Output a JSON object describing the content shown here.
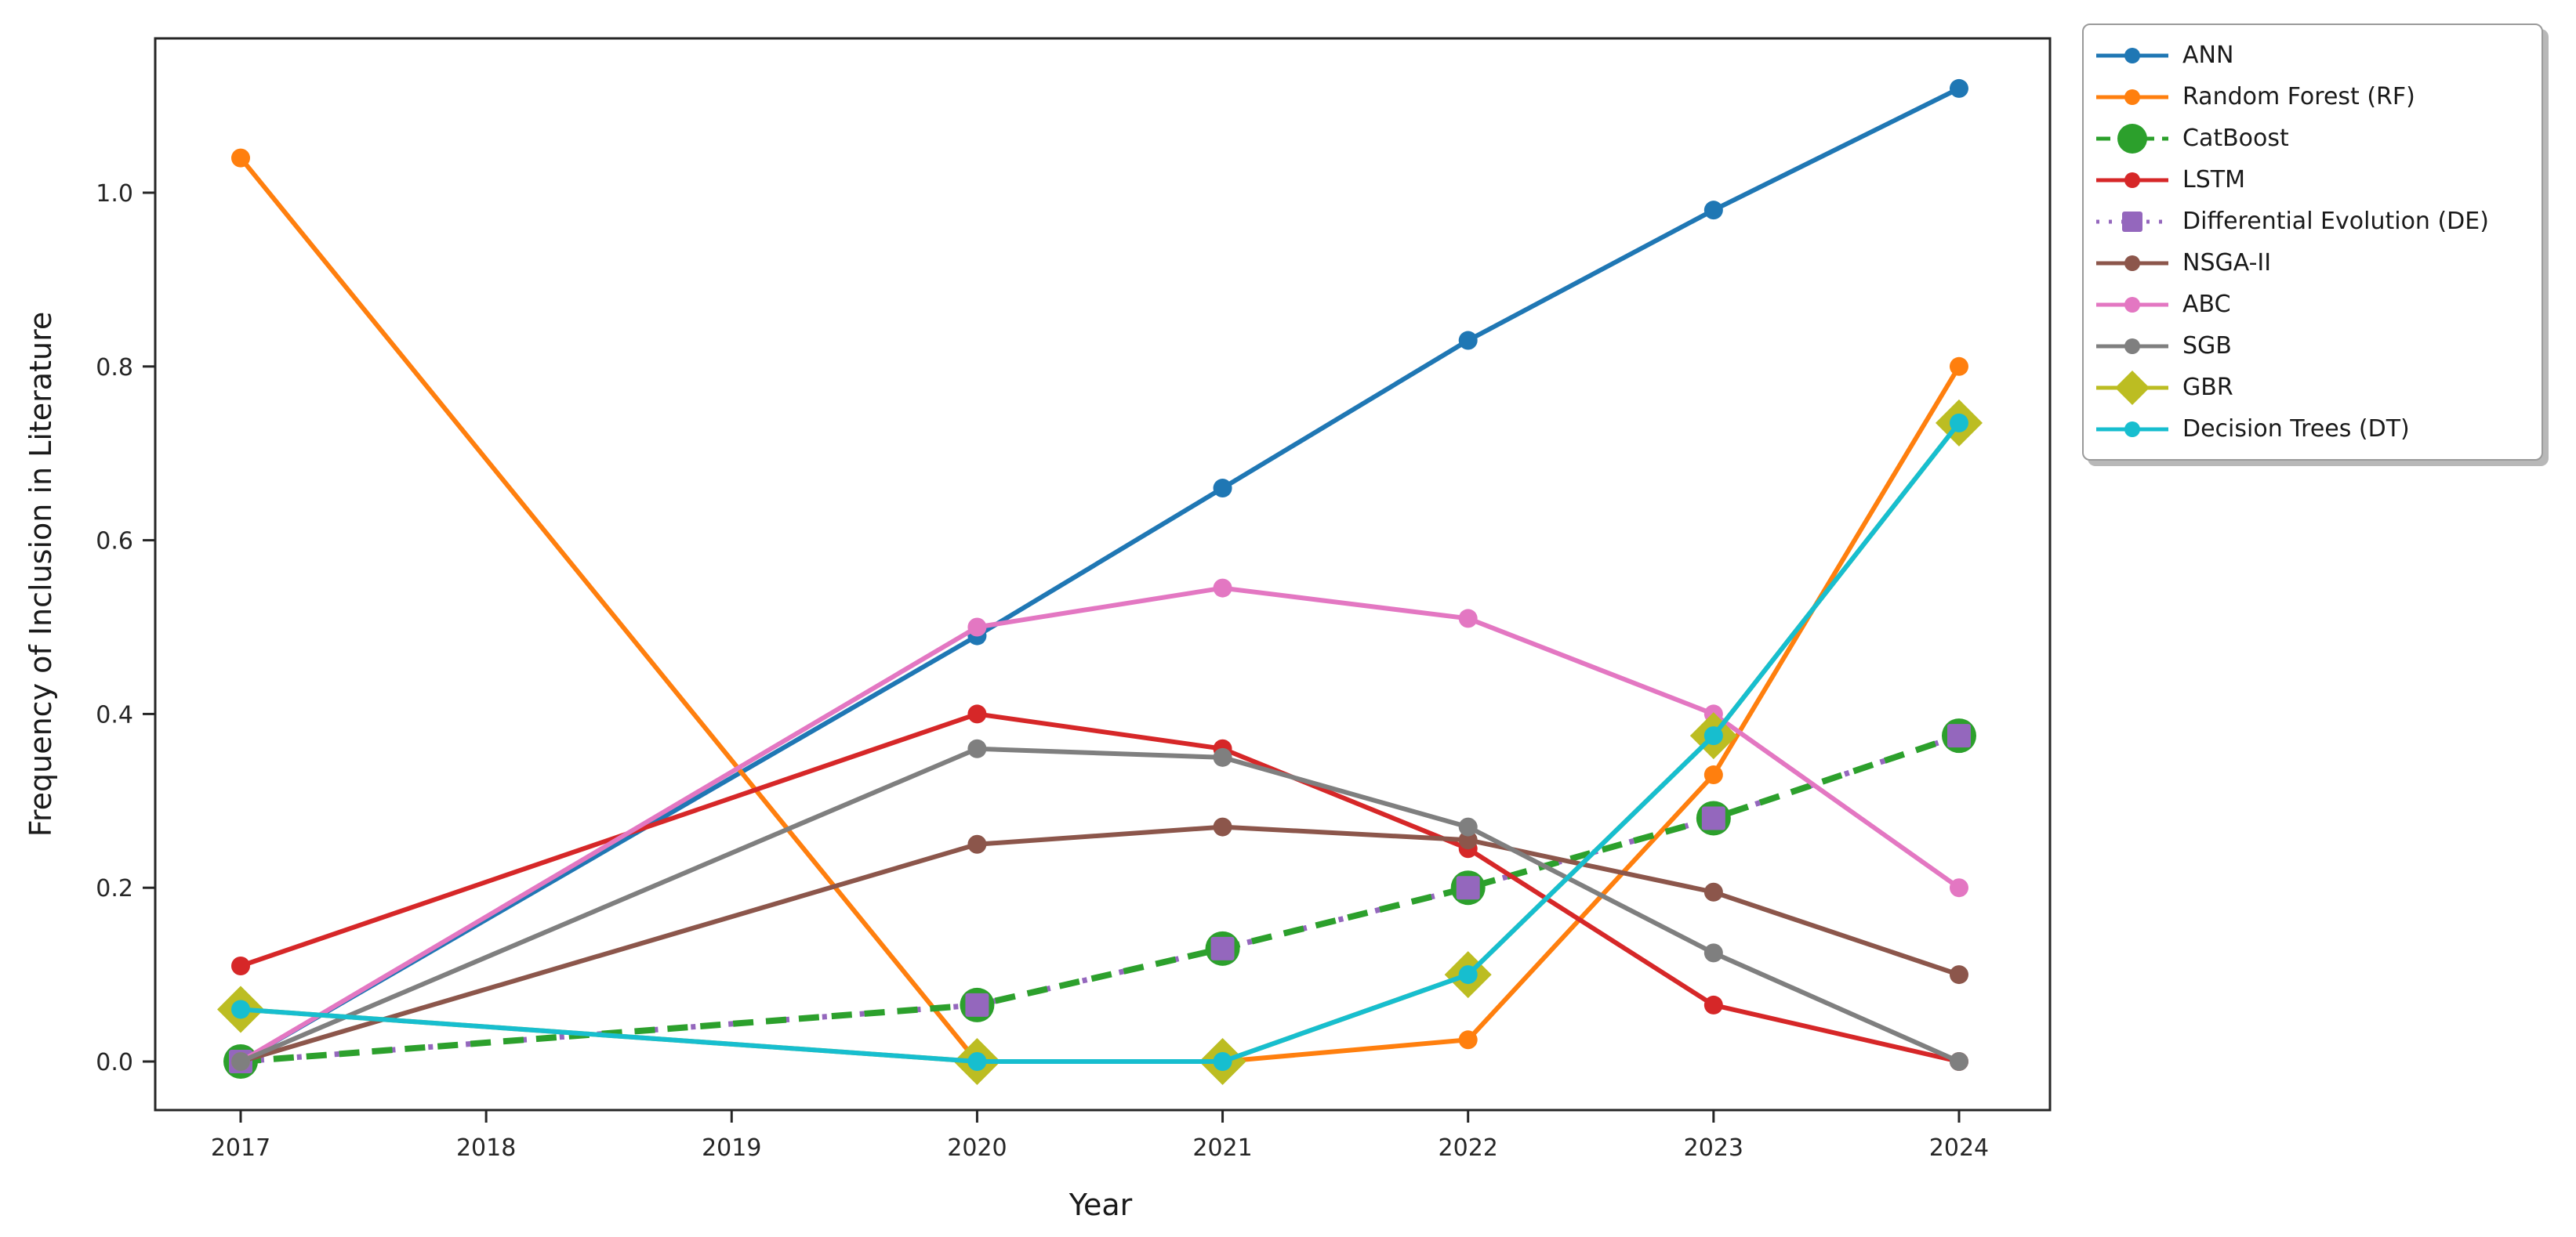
{
  "figure": {
    "background": "#ffffff",
    "spine_color": "#262626",
    "tick_label_color": "#262626"
  },
  "chart_data": {
    "type": "line",
    "title": "",
    "xlabel": "Year",
    "ylabel": "Frequency of Inclusion in Literature",
    "x": [
      2017,
      2020,
      2021,
      2022,
      2023,
      2024
    ],
    "x_tick_labels": [
      "2017",
      "2018",
      "2019",
      "2020",
      "2021",
      "2022",
      "2023",
      "2024"
    ],
    "y_tick_labels": [
      "0.0",
      "0.2",
      "0.4",
      "0.6",
      "0.8",
      "1.0"
    ],
    "y_tick_values": [
      0.0,
      0.2,
      0.4,
      0.6,
      0.8,
      1.0
    ],
    "xlim": [
      2016.65,
      2024.35
    ],
    "ylim": [
      -0.056,
      1.178
    ],
    "grid": false,
    "legend_position": "outside upper right",
    "series": [
      {
        "id": "ann",
        "name": "ANN",
        "color": "#1f77b4",
        "line_style": "solid",
        "marker": "circle",
        "marker_size": "normal",
        "values": [
          0.0,
          0.49,
          0.66,
          0.83,
          0.98,
          1.12
        ]
      },
      {
        "id": "rf",
        "name": "Random Forest (RF)",
        "color": "#ff7f0e",
        "line_style": "solid",
        "marker": "circle",
        "marker_size": "normal",
        "values": [
          1.04,
          0.0,
          0.0,
          0.025,
          0.33,
          0.8
        ]
      },
      {
        "id": "catboost",
        "name": "CatBoost",
        "color": "#2ca02c",
        "line_style": "dashed",
        "marker": "circle",
        "marker_size": "large",
        "values": [
          0.0,
          0.065,
          0.13,
          0.2,
          0.28,
          0.375
        ]
      },
      {
        "id": "lstm",
        "name": "LSTM",
        "color": "#d62728",
        "line_style": "solid",
        "marker": "circle",
        "marker_size": "normal",
        "values": [
          0.11,
          0.4,
          0.36,
          0.245,
          0.065,
          0.0
        ]
      },
      {
        "id": "de",
        "name": "Differential Evolution (DE)",
        "color": "#9467bd",
        "line_style": "dotted",
        "marker": "square",
        "marker_size": "large",
        "values": [
          0.0,
          0.065,
          0.13,
          0.2,
          0.28,
          0.375
        ]
      },
      {
        "id": "nsga2",
        "name": "NSGA-II",
        "color": "#8c564b",
        "line_style": "solid",
        "marker": "circle",
        "marker_size": "normal",
        "values": [
          0.0,
          0.25,
          0.27,
          0.255,
          0.195,
          0.1
        ]
      },
      {
        "id": "abc",
        "name": "ABC",
        "color": "#e377c2",
        "line_style": "solid",
        "marker": "circle",
        "marker_size": "normal",
        "values": [
          0.0,
          0.5,
          0.545,
          0.51,
          0.4,
          0.2
        ]
      },
      {
        "id": "sgb",
        "name": "SGB",
        "color": "#7f7f7f",
        "line_style": "solid",
        "marker": "circle",
        "marker_size": "normal",
        "values": [
          0.0,
          0.36,
          0.35,
          0.27,
          0.125,
          0.0
        ]
      },
      {
        "id": "gbr",
        "name": "GBR",
        "color": "#bcbd22",
        "line_style": "solid",
        "marker": "diamond",
        "marker_size": "xlarge",
        "values": [
          0.06,
          0.0,
          0.0,
          0.1,
          0.375,
          0.735
        ]
      },
      {
        "id": "dt",
        "name": "Decision Trees (DT)",
        "color": "#17becf",
        "line_style": "solid",
        "marker": "circle",
        "marker_size": "normal",
        "values": [
          0.06,
          0.0,
          0.0,
          0.1,
          0.375,
          0.735
        ]
      }
    ]
  }
}
